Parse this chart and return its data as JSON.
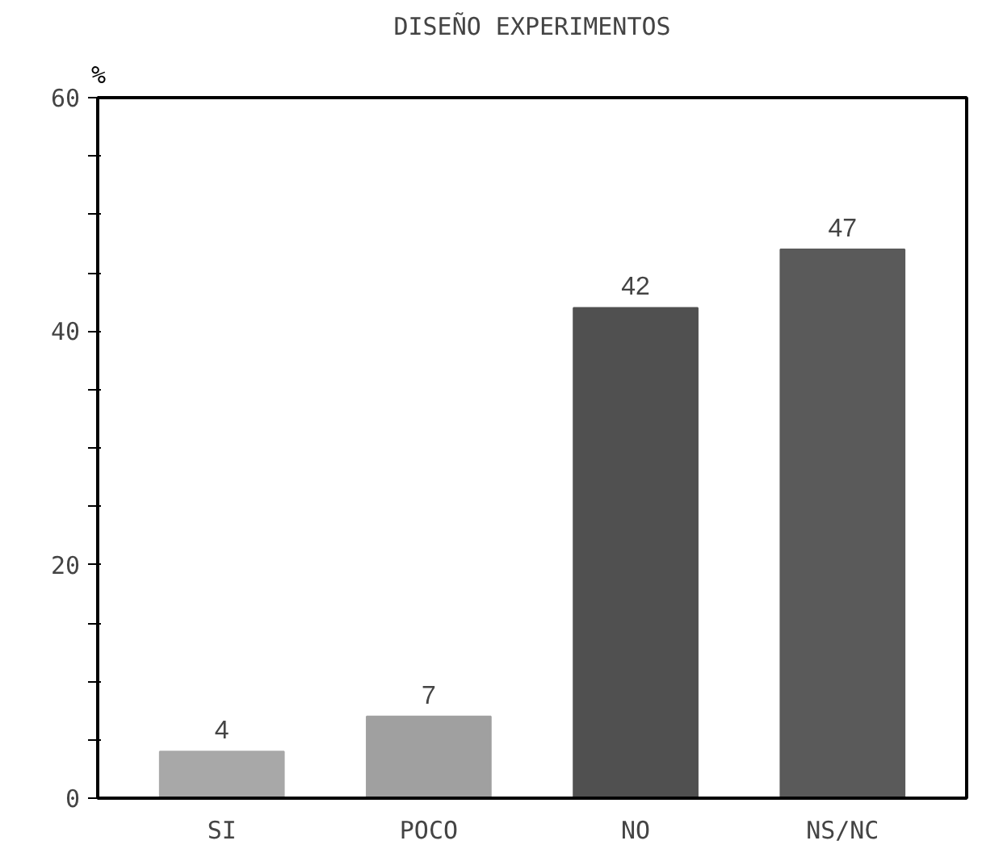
{
  "chart_data": {
    "type": "bar",
    "title": "DISEÑO EXPERIMENTOS",
    "ylabel": "%",
    "categories": [
      "SI",
      "POCO",
      "NO",
      "NS/NC"
    ],
    "values": [
      4,
      7,
      42,
      47
    ],
    "colors": [
      "#a8a8a8",
      "#a0a0a0",
      "#505050",
      "#5a5a5a"
    ],
    "ylim": [
      0,
      60
    ],
    "yticks": [
      0,
      {
        "value": 5,
        "label": null
      },
      {
        "value": 10,
        "label": null
      },
      {
        "value": 15,
        "label": null
      },
      20,
      {
        "value": 25,
        "label": null
      },
      {
        "value": 30,
        "label": null
      },
      {
        "value": 35,
        "label": null
      },
      40,
      {
        "value": 45,
        "label": null
      },
      {
        "value": 50,
        "label": null
      },
      {
        "value": 55,
        "label": null
      },
      60
    ],
    "data_labels": true,
    "grid": false
  }
}
